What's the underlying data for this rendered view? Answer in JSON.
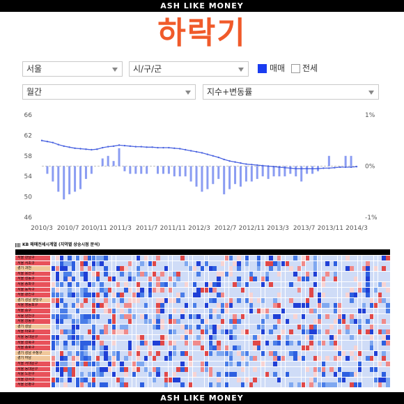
{
  "banner_top": "ASH LIKE MONEY",
  "banner_bottom": "ASH LIKE MONEY",
  "title": "하락기",
  "controls": {
    "region_select": "서울",
    "district_select": "시/구/군",
    "period_select": "월간",
    "mode_select": "지수+변동률",
    "check_sale_label": "매매",
    "check_sale_checked": true,
    "check_jeonse_label": "전세",
    "check_jeonse_checked": false
  },
  "colors": {
    "brand_orange": "#f05a2a",
    "index_line": "#4a63e0",
    "change_bar": "#8a9cf2",
    "zero_line": "#bfbfbf"
  },
  "chart_data": {
    "type": "line",
    "left_axis": {
      "ticks": [
        "66",
        "62",
        "58",
        "54",
        "50",
        "46"
      ],
      "range": [
        46,
        66
      ]
    },
    "right_axis": {
      "ticks": [
        "1%",
        "0%",
        "-1%"
      ],
      "range": [
        -1,
        1
      ]
    },
    "x_labels": [
      "2010/3",
      "2010/7",
      "2010/11",
      "2011/3",
      "2011/7",
      "2011/11",
      "2012/3",
      "2012/7",
      "2012/11",
      "2013/3",
      "2013/7",
      "2013/11",
      "2014/3"
    ],
    "series": [
      {
        "kind": "line",
        "axis": "left",
        "values": [
          61.0,
          60.8,
          60.6,
          60.2,
          59.9,
          59.7,
          59.5,
          59.4,
          59.3,
          59.2,
          59.3,
          59.6,
          59.8,
          59.9,
          60.1,
          60.0,
          59.9,
          59.8,
          59.8,
          59.7,
          59.7,
          59.6,
          59.6,
          59.6,
          59.5,
          59.4,
          59.2,
          59.0,
          58.8,
          58.6,
          58.3,
          58.0,
          57.7,
          57.3,
          57.0,
          56.8,
          56.6,
          56.4,
          56.3,
          56.2,
          56.1,
          56.0,
          55.9,
          55.8,
          55.7,
          55.6,
          55.5,
          55.5,
          55.5,
          55.5,
          55.5,
          55.6,
          55.6,
          55.7,
          55.8,
          55.8,
          55.8,
          55.9
        ]
      },
      {
        "kind": "bar",
        "axis": "right",
        "values": [
          0.0,
          -0.15,
          -0.3,
          -0.5,
          -0.65,
          -0.55,
          -0.5,
          -0.45,
          -0.25,
          -0.15,
          0.0,
          0.15,
          0.2,
          0.1,
          0.35,
          -0.1,
          -0.15,
          -0.15,
          -0.15,
          -0.15,
          0.0,
          -0.15,
          -0.15,
          -0.15,
          -0.2,
          -0.2,
          -0.2,
          -0.3,
          -0.4,
          -0.5,
          -0.45,
          -0.35,
          -0.25,
          -0.55,
          -0.45,
          -0.35,
          -0.4,
          -0.3,
          -0.3,
          -0.25,
          -0.2,
          -0.25,
          -0.2,
          -0.2,
          -0.2,
          -0.15,
          -0.2,
          -0.3,
          -0.15,
          -0.15,
          -0.1,
          0.0,
          0.2,
          0.0,
          0.0,
          0.2,
          0.2,
          0.0
        ]
      }
    ]
  },
  "table": {
    "caption": "KB 매매전세시계열 (지역별 상승시점 분석)",
    "header_first": "지역",
    "rows": [
      {
        "label": "서울 강남구",
        "color": "#e8515a"
      },
      {
        "label": "서울 서초구",
        "color": "#e8515a"
      },
      {
        "label": "경기 과천",
        "color": "#f0c79a"
      },
      {
        "label": "서울 용산구",
        "color": "#e8515a"
      },
      {
        "label": "서울 성동구",
        "color": "#e8515a"
      },
      {
        "label": "서울 송파구",
        "color": "#e8515a"
      },
      {
        "label": "서울 동작구",
        "color": "#e8515a"
      },
      {
        "label": "서울 광진구",
        "color": "#e8515a"
      },
      {
        "label": "경기 성남 분당구",
        "color": "#f0c79a"
      },
      {
        "label": "서울 영등포구",
        "color": "#e8515a"
      },
      {
        "label": "서울 중구",
        "color": "#e8515a"
      },
      {
        "label": "서울 양천구",
        "color": "#e8515a"
      },
      {
        "label": "서울 강동구",
        "color": "#e8515a"
      },
      {
        "label": "경기 성남",
        "color": "#f0c79a"
      },
      {
        "label": "서울 마포구",
        "color": "#e8515a"
      },
      {
        "label": "서울 동대문구",
        "color": "#e8515a"
      },
      {
        "label": "서울 성북구",
        "color": "#e8515a"
      },
      {
        "label": "서울 종로구",
        "color": "#e8515a"
      },
      {
        "label": "경기 성남 수정구",
        "color": "#f0c79a"
      },
      {
        "label": "경기 하남",
        "color": "#f0c79a"
      },
      {
        "label": "서울 서대문구",
        "color": "#e8515a"
      },
      {
        "label": "서울 동대문구",
        "color": "#e8515a"
      },
      {
        "label": "서울 노원구",
        "color": "#e8515a"
      },
      {
        "label": "서울 강서구",
        "color": "#e8515a"
      },
      {
        "label": "서울 은평구",
        "color": "#e8515a"
      }
    ]
  }
}
